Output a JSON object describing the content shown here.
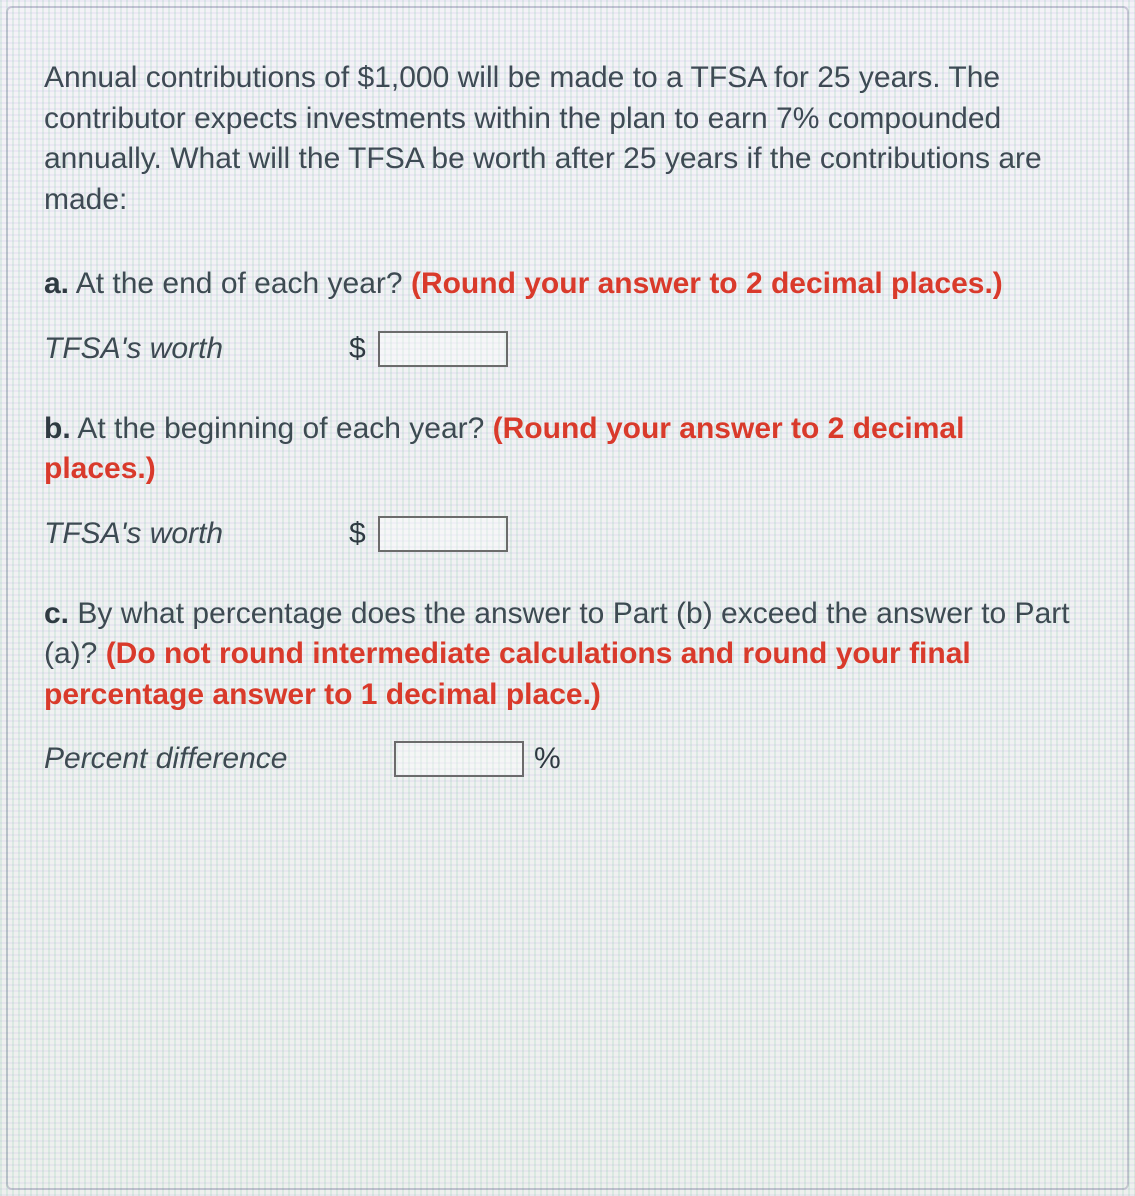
{
  "background": {
    "pattern_colors": [
      "#8fd1ae",
      "#a89ad8",
      "#f4f2f7"
    ],
    "text_color": "#3d4a52",
    "hint_color": "#d93a2b",
    "input_border": "#6b6b6b"
  },
  "intro": "Annual contributions of $1,000 will be made to a TFSA for 25 years. The contributor expects investments within the plan to earn 7% compounded annually. What will the TFSA be worth after 25 years if the contributions are made:",
  "parts": {
    "a": {
      "label": "a.",
      "text": " At the end of each year? ",
      "hint": "(Round your answer to 2 decimal places.)",
      "answer_label": "TFSA's worth",
      "prefix": "$",
      "value": ""
    },
    "b": {
      "label": "b.",
      "text": " At the beginning of each year? ",
      "hint": "(Round your answer to 2 decimal places.)",
      "answer_label": "TFSA's worth",
      "prefix": "$",
      "value": ""
    },
    "c": {
      "label": "c.",
      "text": " By what percentage does the answer to Part (b) exceed the answer to Part (a)? ",
      "hint": "(Do not round intermediate calculations and round your final percentage answer to 1 decimal place.)",
      "answer_label": "Percent difference",
      "suffix": "%",
      "value": ""
    }
  }
}
